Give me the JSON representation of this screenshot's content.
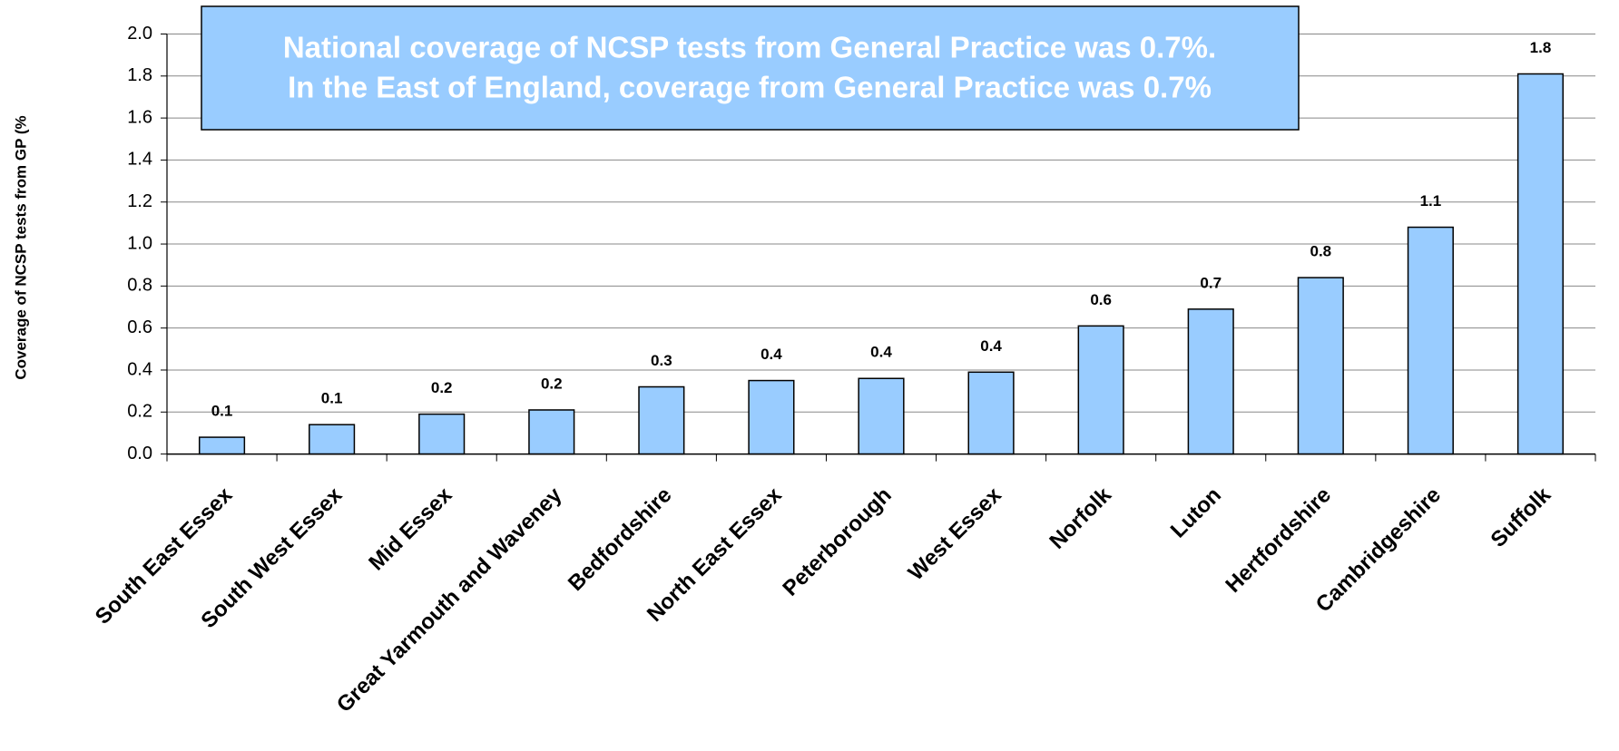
{
  "chart_data": {
    "type": "bar",
    "y_axis_label": "Coverage of NCSP tests from GP (%",
    "annotation": [
      "National coverage of NCSP tests from General Practice was 0.7%.",
      "In the East of England, coverage from General Practice was 0.7%"
    ],
    "categories": [
      "South East Essex",
      "South West Essex",
      "Mid Essex",
      "Great Yarmouth and Waveney",
      "Bedfordshire",
      "North East Essex",
      "Peterborough",
      "West Essex",
      "Norfolk",
      "Luton",
      "Hertfordshire",
      "Cambridgeshire",
      "Suffolk"
    ],
    "values": [
      0.08,
      0.14,
      0.19,
      0.21,
      0.32,
      0.35,
      0.36,
      0.39,
      0.61,
      0.69,
      0.84,
      1.08,
      1.81
    ],
    "value_labels": [
      "0.1",
      "0.1",
      "0.2",
      "0.2",
      "0.3",
      "0.4",
      "0.4",
      "0.4",
      "0.6",
      "0.7",
      "0.8",
      "1.1",
      "1.8"
    ],
    "color": "#99ccff",
    "ylim": [
      0,
      2
    ],
    "yticks": [
      {
        "value": 0,
        "label": "0.0"
      },
      0.2,
      0.4,
      0.6,
      0.8,
      {
        "value": 1,
        "label": "1.0"
      },
      1.2,
      1.4,
      1.6,
      1.8,
      {
        "value": 2,
        "label": "2.0"
      }
    ],
    "grid": true
  }
}
